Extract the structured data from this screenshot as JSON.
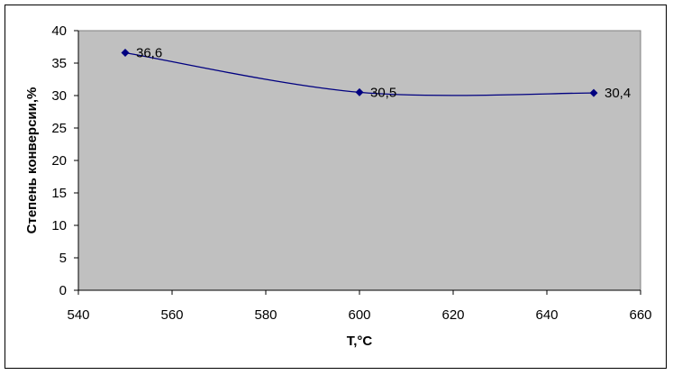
{
  "chart_data": {
    "type": "scatter",
    "title": "",
    "xlabel": "T,°C",
    "ylabel": "Степень конверсии,%",
    "xlim": [
      540,
      660
    ],
    "ylim": [
      0,
      40
    ],
    "x_ticks": [
      540,
      560,
      580,
      600,
      620,
      640,
      660
    ],
    "y_ticks": [
      0,
      5,
      10,
      15,
      20,
      25,
      30,
      35,
      40
    ],
    "grid": false,
    "legend": "none",
    "plot_background": "#c0c0c0",
    "series": [
      {
        "color": "#000080",
        "marker": "diamond",
        "smooth": true,
        "points": [
          {
            "x": 550,
            "y": 36.6,
            "label": "36,6"
          },
          {
            "x": 600,
            "y": 30.5,
            "label": "30,5"
          },
          {
            "x": 650,
            "y": 30.4,
            "label": "30,4"
          }
        ]
      }
    ]
  }
}
